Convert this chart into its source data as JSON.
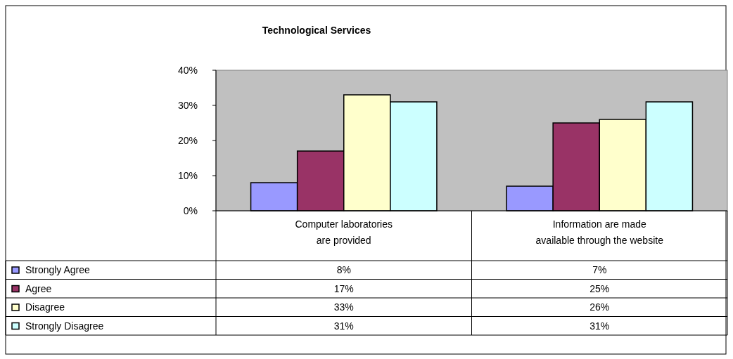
{
  "chart_data": {
    "type": "bar",
    "title": "Technological Services",
    "categories": [
      "Computer laboratories are provided",
      "Information are made available through the website"
    ],
    "series": [
      {
        "name": "Strongly Agree",
        "color": "#9999ff",
        "values": [
          8,
          7
        ],
        "value_labels": [
          "8%",
          "7%"
        ]
      },
      {
        "name": "Agree",
        "color": "#993366",
        "values": [
          17,
          25
        ],
        "value_labels": [
          "17%",
          "25%"
        ]
      },
      {
        "name": "Disagree",
        "color": "#ffffcc",
        "values": [
          33,
          26
        ],
        "value_labels": [
          "33%",
          "26%"
        ]
      },
      {
        "name": "Strongly Disagree",
        "color": "#ccffff",
        "values": [
          31,
          31
        ],
        "value_labels": [
          "31%",
          "31%"
        ]
      }
    ],
    "ylim": [
      0,
      40
    ],
    "yticks": [
      {
        "value": 0,
        "label": "0%"
      },
      {
        "value": 10,
        "label": "10%"
      },
      {
        "value": 20,
        "label": "20%"
      },
      {
        "value": 30,
        "label": "30%"
      },
      {
        "value": 40,
        "label": "40%"
      }
    ],
    "legend": "bottom",
    "grid": false
  }
}
